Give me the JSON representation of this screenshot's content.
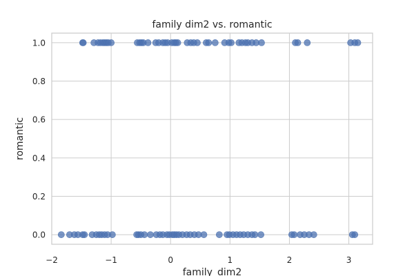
{
  "chart_data": {
    "type": "scatter",
    "title": "family dim2 vs. romantic",
    "xlabel": "family_dim2",
    "ylabel": "romantic",
    "xlim": [
      -2.0,
      3.4
    ],
    "ylim": [
      -0.05,
      1.05
    ],
    "xticks": [
      -2,
      -1,
      0,
      1,
      2,
      3
    ],
    "xtick_labels": [
      "−2",
      "−1",
      "0",
      "1",
      "2",
      "3"
    ],
    "yticks": [
      0.0,
      0.2,
      0.4,
      0.6,
      0.8,
      1.0
    ],
    "ytick_labels": [
      "0.0",
      "0.2",
      "0.4",
      "0.6",
      "0.8",
      "1.0"
    ],
    "grid": true,
    "point_color": "#4c72b0",
    "point_alpha": 0.75,
    "series": [
      {
        "points": [
          [
            -1.48,
            1
          ],
          [
            -1.47,
            1
          ],
          [
            -1.29,
            1
          ],
          [
            -1.22,
            1
          ],
          [
            -1.18,
            1
          ],
          [
            -1.14,
            1
          ],
          [
            -1.11,
            1
          ],
          [
            -1.08,
            1
          ],
          [
            -1.05,
            1
          ],
          [
            -1.0,
            1
          ],
          [
            -0.56,
            1
          ],
          [
            -0.52,
            1
          ],
          [
            -0.49,
            1
          ],
          [
            -0.46,
            1
          ],
          [
            -0.38,
            1
          ],
          [
            -0.25,
            1
          ],
          [
            -0.2,
            1
          ],
          [
            -0.13,
            1
          ],
          [
            -0.09,
            1
          ],
          [
            -0.05,
            1
          ],
          [
            0.02,
            1
          ],
          [
            0.06,
            1
          ],
          [
            0.09,
            1
          ],
          [
            0.12,
            1
          ],
          [
            0.28,
            1
          ],
          [
            0.34,
            1
          ],
          [
            0.39,
            1
          ],
          [
            0.45,
            1
          ],
          [
            0.6,
            1
          ],
          [
            0.64,
            1
          ],
          [
            0.75,
            1
          ],
          [
            0.91,
            1
          ],
          [
            0.98,
            1
          ],
          [
            1.02,
            1
          ],
          [
            1.15,
            1
          ],
          [
            1.2,
            1
          ],
          [
            1.26,
            1
          ],
          [
            1.3,
            1
          ],
          [
            1.37,
            1
          ],
          [
            1.44,
            1
          ],
          [
            1.53,
            1
          ],
          [
            2.1,
            1
          ],
          [
            2.14,
            1
          ],
          [
            2.3,
            1
          ],
          [
            3.03,
            1
          ],
          [
            3.1,
            1
          ],
          [
            3.15,
            1
          ],
          [
            -1.84,
            0
          ],
          [
            -1.7,
            0
          ],
          [
            -1.62,
            0
          ],
          [
            -1.56,
            0
          ],
          [
            -1.48,
            0
          ],
          [
            -1.45,
            0
          ],
          [
            -1.32,
            0
          ],
          [
            -1.25,
            0
          ],
          [
            -1.2,
            0
          ],
          [
            -1.16,
            0
          ],
          [
            -1.11,
            0
          ],
          [
            -1.06,
            0
          ],
          [
            -0.98,
            0
          ],
          [
            -0.57,
            0
          ],
          [
            -0.54,
            0
          ],
          [
            -0.5,
            0
          ],
          [
            -0.44,
            0
          ],
          [
            -0.34,
            0
          ],
          [
            -0.24,
            0
          ],
          [
            -0.18,
            0
          ],
          [
            -0.13,
            0
          ],
          [
            -0.06,
            0
          ],
          [
            -0.02,
            0
          ],
          [
            0.03,
            0
          ],
          [
            0.06,
            0
          ],
          [
            0.1,
            0
          ],
          [
            0.14,
            0
          ],
          [
            0.2,
            0
          ],
          [
            0.27,
            0
          ],
          [
            0.33,
            0
          ],
          [
            0.4,
            0
          ],
          [
            0.47,
            0
          ],
          [
            0.56,
            0
          ],
          [
            0.82,
            0
          ],
          [
            0.95,
            0
          ],
          [
            0.99,
            0
          ],
          [
            1.05,
            0
          ],
          [
            1.11,
            0
          ],
          [
            1.17,
            0
          ],
          [
            1.23,
            0
          ],
          [
            1.3,
            0
          ],
          [
            1.37,
            0
          ],
          [
            1.42,
            0
          ],
          [
            1.52,
            0
          ],
          [
            2.04,
            0
          ],
          [
            2.08,
            0
          ],
          [
            2.18,
            0
          ],
          [
            2.25,
            0
          ],
          [
            2.33,
            0
          ],
          [
            2.41,
            0
          ],
          [
            3.06,
            0
          ],
          [
            3.1,
            0
          ]
        ]
      }
    ]
  }
}
